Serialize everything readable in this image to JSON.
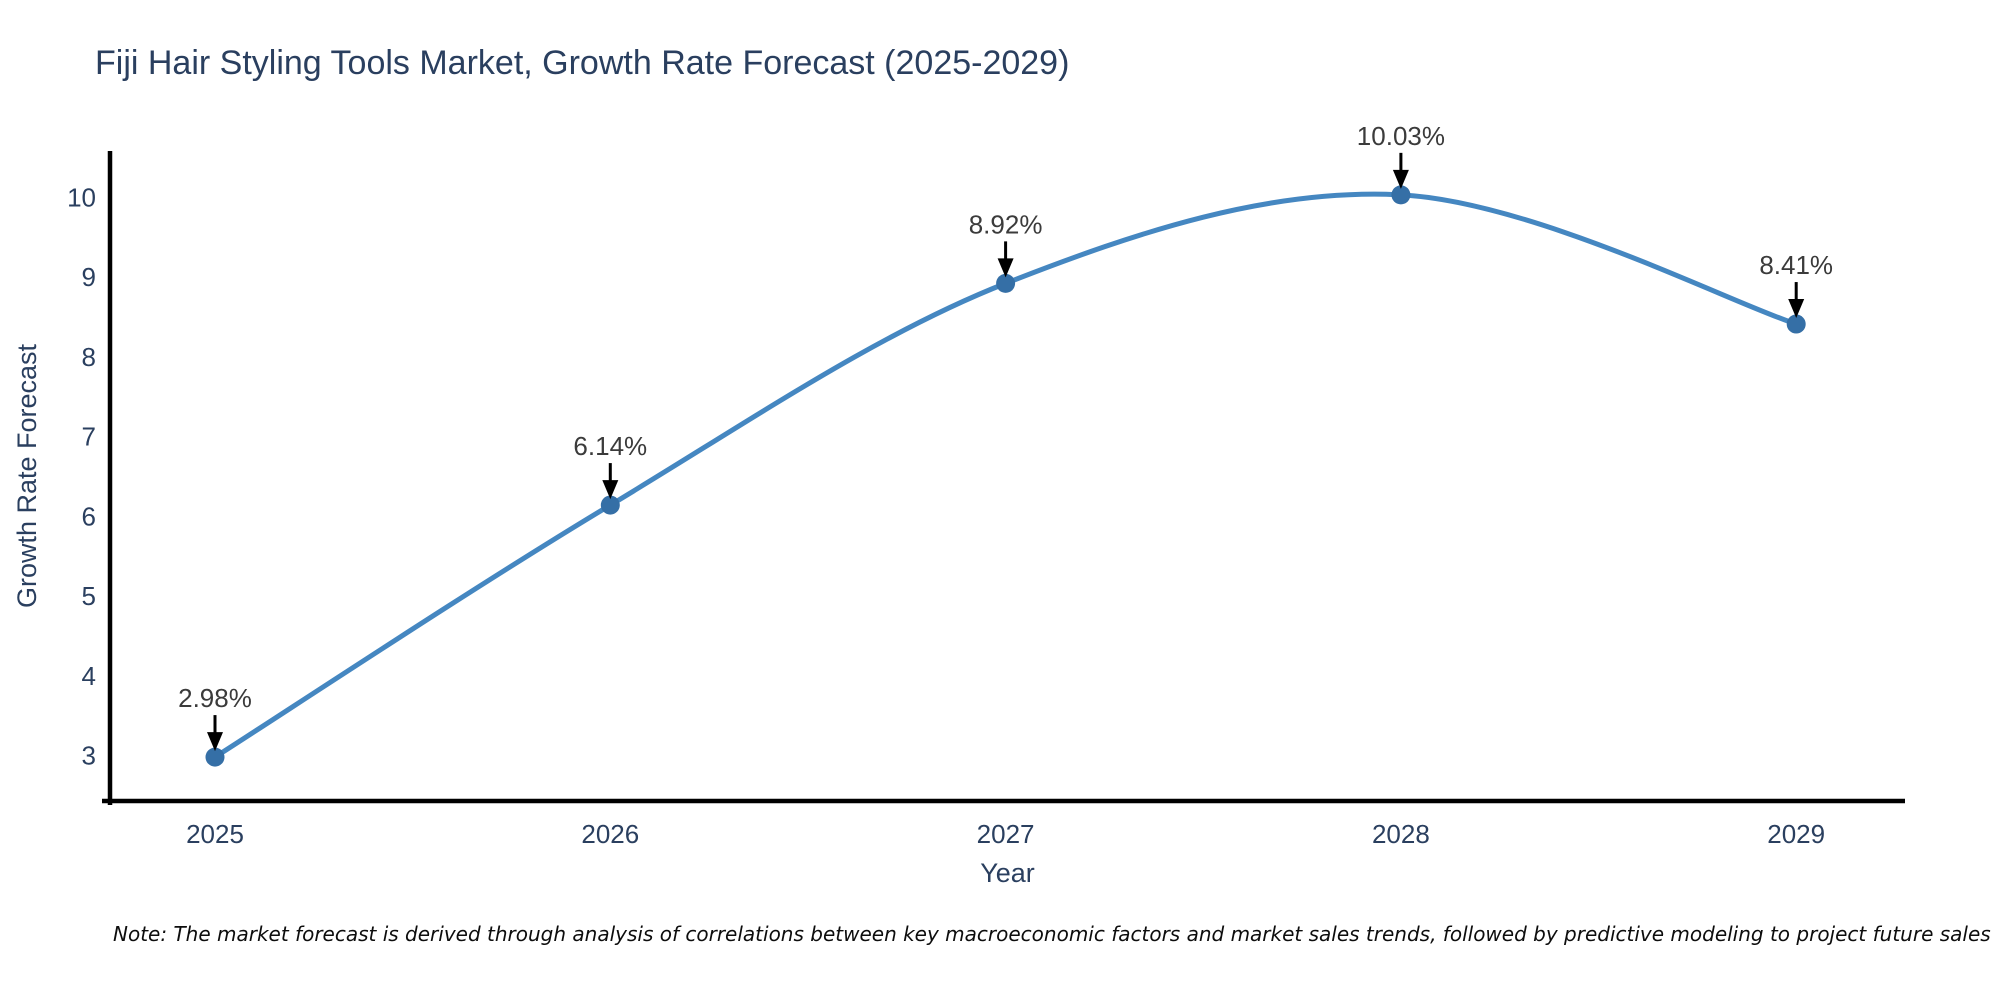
{
  "title": "Fiji Hair Styling Tools Market, Growth Rate Forecast (2025-2029)",
  "note": "Note: The market forecast is derived through analysis of correlations between key macroeconomic factors and market sales trends, followed by predictive modeling to project future sales",
  "chart_data": {
    "type": "line",
    "title": "Fiji Hair Styling Tools Market, Growth Rate Forecast (2025-2029)",
    "xlabel": "Year",
    "ylabel": "Growth Rate Forecast",
    "x": [
      2025,
      2026,
      2027,
      2028,
      2029
    ],
    "values": [
      2.98,
      6.14,
      8.92,
      10.03,
      8.41
    ],
    "point_labels": [
      "2.98%",
      "6.14%",
      "8.92%",
      "10.03%",
      "8.41%"
    ],
    "yticks": [
      3,
      4,
      5,
      6,
      7,
      8,
      9,
      10
    ],
    "ylim": [
      2.45,
      10.6
    ],
    "line_shape": "spline",
    "grid": false,
    "legend": "none",
    "colors": {
      "line": "#4587c1",
      "marker": "#356fa6",
      "axis": "#000000",
      "tick_text": "#2a3f5f",
      "axis_title_text": "#2a3f5f",
      "annotation_text": "#3b3b3b",
      "arrow": "#000000"
    }
  }
}
